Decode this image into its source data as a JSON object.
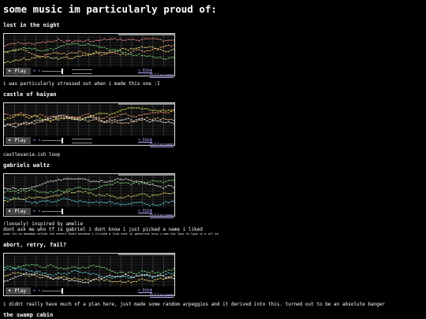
{
  "header": {
    "title": "some music im particularly proud of:"
  },
  "player": {
    "play": "Play",
    "edit": "Edit",
    "fullscreen": "Fullscreen"
  },
  "songs": [
    {
      "name": "lost in the night",
      "description": [
        "i was particularly stressed out when i made this one :I"
      ]
    },
    {
      "name": "castle of haiyan",
      "description": [
        "castlevania-ish loop"
      ]
    },
    {
      "name": "gabriels waltz",
      "description": [
        "(loosely) inspired by amelie",
        "dont ask me who tf is gabriel i dont know i just picked a name i liked"
      ],
      "footnote": "yeah its in beepbox unlike the others thats because i clicked a link sent in gatherout bcuz i was too lazy to type in a url xd"
    },
    {
      "name": "abort, retry, fail?",
      "description": [
        "i didnt really have much of a plan here, just made some random arpeggios and it derived into this. turned out to be an absolute banger"
      ]
    },
    {
      "name": "the swamp cabin",
      "description": []
    }
  ]
}
